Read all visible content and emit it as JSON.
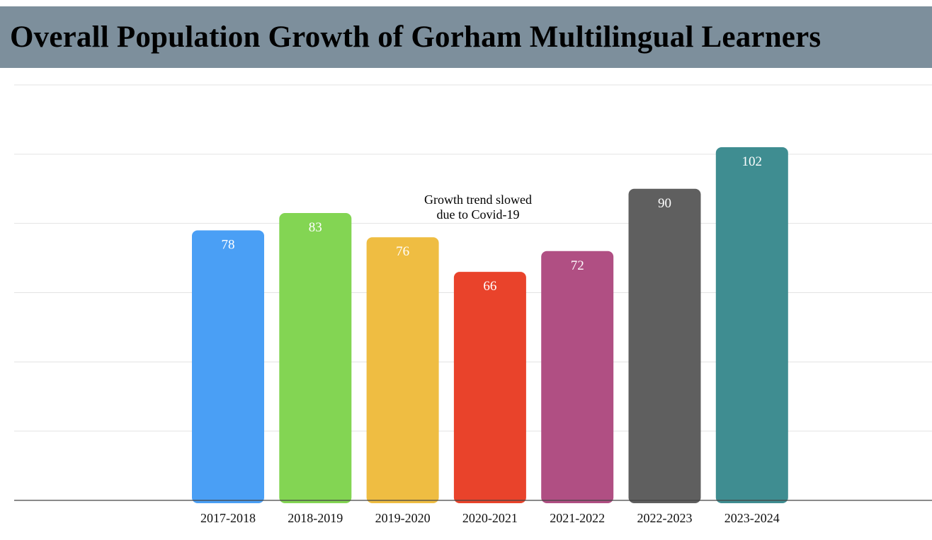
{
  "title": "Overall Population Growth of Gorham Multilingual Learners",
  "chart_data": {
    "type": "bar",
    "title": "Overall Population Growth of Gorham Multilingual Learners",
    "categories": [
      "2017-2018",
      "2018-2019",
      "2019-2020",
      "2020-2021",
      "2021-2022",
      "2022-2023",
      "2023-2024"
    ],
    "values": [
      78,
      83,
      76,
      66,
      72,
      90,
      102
    ],
    "colors": [
      "#4a9ff5",
      "#83d553",
      "#efbd42",
      "#e9432b",
      "#b04f83",
      "#5f5f5f",
      "#3f8d91"
    ],
    "data_labels": [
      "78",
      "83",
      "76",
      "66",
      "72",
      "90",
      "102"
    ],
    "annotation": "Growth trend slowed\ndue to Covid-19",
    "ylim": [
      0,
      120
    ],
    "grid": true,
    "legend": "none",
    "xlabel": "",
    "ylabel": ""
  }
}
